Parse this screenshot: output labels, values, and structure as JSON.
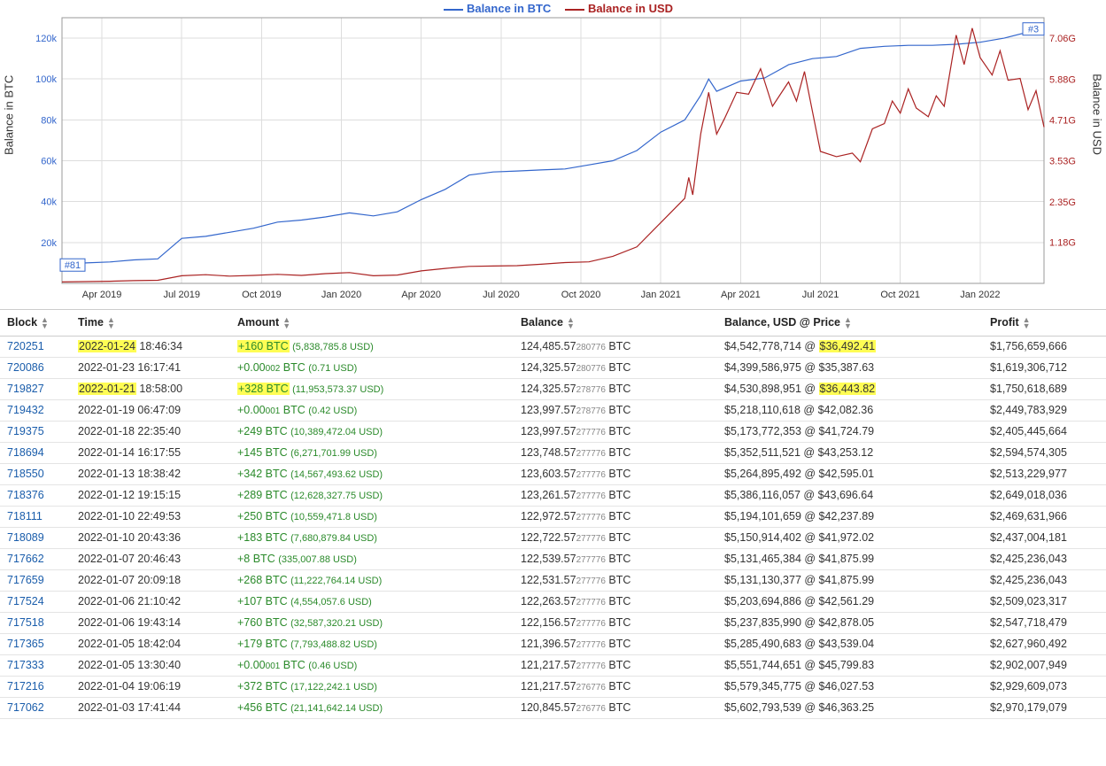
{
  "chart": {
    "type": "line",
    "legend": {
      "btc": "Balance in BTC",
      "usd": "Balance in USD"
    },
    "colors": {
      "btc": "#3366cc",
      "usd": "#aa2222",
      "grid": "#dddddd",
      "axis": "#999999",
      "bg": "#ffffff"
    },
    "y_axis_left": {
      "label": "Balance in BTC",
      "ticks": [
        {
          "v": 20000,
          "label": "20k"
        },
        {
          "v": 40000,
          "label": "40k"
        },
        {
          "v": 60000,
          "label": "60k"
        },
        {
          "v": 80000,
          "label": "80k"
        },
        {
          "v": 100000,
          "label": "100k"
        },
        {
          "v": 120000,
          "label": "120k"
        }
      ],
      "min": 0,
      "max": 130000
    },
    "y_axis_right": {
      "label": "Balance in USD",
      "ticks": [
        {
          "v": 1.18,
          "label": "1.18G"
        },
        {
          "v": 2.35,
          "label": "2.35G"
        },
        {
          "v": 3.53,
          "label": "3.53G"
        },
        {
          "v": 4.71,
          "label": "4.71G"
        },
        {
          "v": 5.88,
          "label": "5.88G"
        },
        {
          "v": 7.06,
          "label": "7.06G"
        }
      ],
      "min": 0,
      "max": 7.65
    },
    "x_axis": {
      "ticks": [
        "Apr 2019",
        "Jul 2019",
        "Oct 2019",
        "Jan 2020",
        "Apr 2020",
        "Jul 2020",
        "Oct 2020",
        "Jan 2021",
        "Apr 2021",
        "Jul 2021",
        "Oct 2021",
        "Jan 2022"
      ],
      "min_t": 0,
      "max_t": 12.3
    },
    "badges": {
      "start": "#81",
      "end": "#3"
    },
    "series_btc": [
      [
        0.0,
        9000
      ],
      [
        0.3,
        10000
      ],
      [
        0.6,
        10500
      ],
      [
        0.9,
        11500
      ],
      [
        1.2,
        12000
      ],
      [
        1.5,
        22000
      ],
      [
        1.8,
        23000
      ],
      [
        2.1,
        25000
      ],
      [
        2.4,
        27000
      ],
      [
        2.7,
        30000
      ],
      [
        3.0,
        31000
      ],
      [
        3.3,
        32500
      ],
      [
        3.6,
        34500
      ],
      [
        3.9,
        33000
      ],
      [
        4.2,
        35000
      ],
      [
        4.5,
        41000
      ],
      [
        4.8,
        46000
      ],
      [
        5.1,
        53000
      ],
      [
        5.4,
        54500
      ],
      [
        5.7,
        55000
      ],
      [
        6.0,
        55500
      ],
      [
        6.3,
        56000
      ],
      [
        6.6,
        58000
      ],
      [
        6.9,
        60000
      ],
      [
        7.2,
        65000
      ],
      [
        7.5,
        74000
      ],
      [
        7.8,
        80000
      ],
      [
        8.0,
        92000
      ],
      [
        8.1,
        100000
      ],
      [
        8.2,
        94000
      ],
      [
        8.5,
        99000
      ],
      [
        8.8,
        100500
      ],
      [
        9.1,
        107000
      ],
      [
        9.4,
        110000
      ],
      [
        9.7,
        111000
      ],
      [
        10.0,
        115000
      ],
      [
        10.3,
        116000
      ],
      [
        10.6,
        116500
      ],
      [
        10.9,
        116500
      ],
      [
        11.2,
        117000
      ],
      [
        11.5,
        118000
      ],
      [
        11.8,
        120000
      ],
      [
        12.1,
        123000
      ],
      [
        12.3,
        124485
      ]
    ],
    "series_usd": [
      [
        0.0,
        0.04
      ],
      [
        0.3,
        0.05
      ],
      [
        0.6,
        0.06
      ],
      [
        0.9,
        0.08
      ],
      [
        1.2,
        0.09
      ],
      [
        1.5,
        0.22
      ],
      [
        1.8,
        0.25
      ],
      [
        2.1,
        0.21
      ],
      [
        2.4,
        0.23
      ],
      [
        2.7,
        0.26
      ],
      [
        3.0,
        0.23
      ],
      [
        3.3,
        0.28
      ],
      [
        3.6,
        0.31
      ],
      [
        3.9,
        0.22
      ],
      [
        4.2,
        0.24
      ],
      [
        4.5,
        0.36
      ],
      [
        4.8,
        0.43
      ],
      [
        5.1,
        0.49
      ],
      [
        5.4,
        0.5
      ],
      [
        5.7,
        0.51
      ],
      [
        6.0,
        0.55
      ],
      [
        6.3,
        0.6
      ],
      [
        6.6,
        0.62
      ],
      [
        6.9,
        0.78
      ],
      [
        7.2,
        1.05
      ],
      [
        7.5,
        1.75
      ],
      [
        7.8,
        2.45
      ],
      [
        7.85,
        3.05
      ],
      [
        7.9,
        2.55
      ],
      [
        8.0,
        4.3
      ],
      [
        8.1,
        5.5
      ],
      [
        8.2,
        4.3
      ],
      [
        8.3,
        4.75
      ],
      [
        8.45,
        5.5
      ],
      [
        8.6,
        5.45
      ],
      [
        8.75,
        6.18
      ],
      [
        8.9,
        5.1
      ],
      [
        9.1,
        5.8
      ],
      [
        9.2,
        5.25
      ],
      [
        9.3,
        6.1
      ],
      [
        9.5,
        3.8
      ],
      [
        9.7,
        3.65
      ],
      [
        9.9,
        3.75
      ],
      [
        10.0,
        3.5
      ],
      [
        10.15,
        4.45
      ],
      [
        10.3,
        4.6
      ],
      [
        10.4,
        5.25
      ],
      [
        10.5,
        4.9
      ],
      [
        10.6,
        5.6
      ],
      [
        10.7,
        5.05
      ],
      [
        10.85,
        4.8
      ],
      [
        10.95,
        5.4
      ],
      [
        11.05,
        5.1
      ],
      [
        11.2,
        7.15
      ],
      [
        11.3,
        6.3
      ],
      [
        11.4,
        7.35
      ],
      [
        11.5,
        6.5
      ],
      [
        11.65,
        6.0
      ],
      [
        11.75,
        6.7
      ],
      [
        11.85,
        5.85
      ],
      [
        12.0,
        5.9
      ],
      [
        12.1,
        5.0
      ],
      [
        12.2,
        5.55
      ],
      [
        12.3,
        4.5
      ]
    ]
  },
  "table": {
    "headers": {
      "block": "Block",
      "time": "Time",
      "amount": "Amount",
      "balance": "Balance",
      "usdprice": "Balance, USD @ Price",
      "profit": "Profit"
    },
    "rows": [
      {
        "block": "720251",
        "time_pre": "2022-01-24",
        "time_post": " 18:46:34",
        "time_hl": true,
        "amt": "+160 BTC",
        "amt_hl": true,
        "amt_usd": "(5,838,785.8 USD)",
        "bal": "124,485.57",
        "bal_sub": "280776",
        "balusd": "$4,542,778,714 @ ",
        "price": "$36,492.41",
        "price_hl": true,
        "profit": "$1,756,659,666"
      },
      {
        "block": "720086",
        "time_pre": "2022-01-23",
        "time_post": " 16:17:41",
        "time_hl": false,
        "amt": "+0.00",
        "amt_sub": "002",
        "amt_tail": " BTC",
        "amt_hl": false,
        "amt_usd": "(0.71 USD)",
        "bal": "124,325.57",
        "bal_sub": "280776",
        "balusd": "$4,399,586,975 @ ",
        "price": "$35,387.63",
        "price_hl": false,
        "profit": "$1,619,306,712"
      },
      {
        "block": "719827",
        "time_pre": "2022-01-21",
        "time_post": " 18:58:00",
        "time_hl": true,
        "amt": "+328 BTC",
        "amt_hl": true,
        "amt_usd": "(11,953,573.37 USD)",
        "bal": "124,325.57",
        "bal_sub": "278776",
        "balusd": "$4,530,898,951 @ ",
        "price": "$36,443.82",
        "price_hl": true,
        "profit": "$1,750,618,689"
      },
      {
        "block": "719432",
        "time_pre": "2022-01-19",
        "time_post": " 06:47:09",
        "time_hl": false,
        "amt": "+0.00",
        "amt_sub": "001",
        "amt_tail": " BTC",
        "amt_hl": false,
        "amt_usd": "(0.42 USD)",
        "bal": "123,997.57",
        "bal_sub": "278776",
        "balusd": "$5,218,110,618 @ ",
        "price": "$42,082.36",
        "price_hl": false,
        "profit": "$2,449,783,929"
      },
      {
        "block": "719375",
        "time_pre": "2022-01-18",
        "time_post": " 22:35:40",
        "time_hl": false,
        "amt": "+249 BTC",
        "amt_hl": false,
        "amt_usd": "(10,389,472.04 USD)",
        "bal": "123,997.57",
        "bal_sub": "277776",
        "balusd": "$5,173,772,353 @ ",
        "price": "$41,724.79",
        "price_hl": false,
        "profit": "$2,405,445,664"
      },
      {
        "block": "718694",
        "time_pre": "2022-01-14",
        "time_post": " 16:17:55",
        "time_hl": false,
        "amt": "+145 BTC",
        "amt_hl": false,
        "amt_usd": "(6,271,701.99 USD)",
        "bal": "123,748.57",
        "bal_sub": "277776",
        "balusd": "$5,352,511,521 @ ",
        "price": "$43,253.12",
        "price_hl": false,
        "profit": "$2,594,574,305"
      },
      {
        "block": "718550",
        "time_pre": "2022-01-13",
        "time_post": " 18:38:42",
        "time_hl": false,
        "amt": "+342 BTC",
        "amt_hl": false,
        "amt_usd": "(14,567,493.62 USD)",
        "bal": "123,603.57",
        "bal_sub": "277776",
        "balusd": "$5,264,895,492 @ ",
        "price": "$42,595.01",
        "price_hl": false,
        "profit": "$2,513,229,977"
      },
      {
        "block": "718376",
        "time_pre": "2022-01-12",
        "time_post": " 19:15:15",
        "time_hl": false,
        "amt": "+289 BTC",
        "amt_hl": false,
        "amt_usd": "(12,628,327.75 USD)",
        "bal": "123,261.57",
        "bal_sub": "277776",
        "balusd": "$5,386,116,057 @ ",
        "price": "$43,696.64",
        "price_hl": false,
        "profit": "$2,649,018,036"
      },
      {
        "block": "718111",
        "time_pre": "2022-01-10",
        "time_post": " 22:49:53",
        "time_hl": false,
        "amt": "+250 BTC",
        "amt_hl": false,
        "amt_usd": "(10,559,471.8 USD)",
        "bal": "122,972.57",
        "bal_sub": "277776",
        "balusd": "$5,194,101,659 @ ",
        "price": "$42,237.89",
        "price_hl": false,
        "profit": "$2,469,631,966"
      },
      {
        "block": "718089",
        "time_pre": "2022-01-10",
        "time_post": " 20:43:36",
        "time_hl": false,
        "amt": "+183 BTC",
        "amt_hl": false,
        "amt_usd": "(7,680,879.84 USD)",
        "bal": "122,722.57",
        "bal_sub": "277776",
        "balusd": "$5,150,914,402 @ ",
        "price": "$41,972.02",
        "price_hl": false,
        "profit": "$2,437,004,181"
      },
      {
        "block": "717662",
        "time_pre": "2022-01-07",
        "time_post": " 20:46:43",
        "time_hl": false,
        "amt": "+8 BTC",
        "amt_hl": false,
        "amt_usd": "(335,007.88 USD)",
        "bal": "122,539.57",
        "bal_sub": "277776",
        "balusd": "$5,131,465,384 @ ",
        "price": "$41,875.99",
        "price_hl": false,
        "profit": "$2,425,236,043"
      },
      {
        "block": "717659",
        "time_pre": "2022-01-07",
        "time_post": " 20:09:18",
        "time_hl": false,
        "amt": "+268 BTC",
        "amt_hl": false,
        "amt_usd": "(11,222,764.14 USD)",
        "bal": "122,531.57",
        "bal_sub": "277776",
        "balusd": "$5,131,130,377 @ ",
        "price": "$41,875.99",
        "price_hl": false,
        "profit": "$2,425,236,043"
      },
      {
        "block": "717524",
        "time_pre": "2022-01-06",
        "time_post": " 21:10:42",
        "time_hl": false,
        "amt": "+107 BTC",
        "amt_hl": false,
        "amt_usd": "(4,554,057.6 USD)",
        "bal": "122,263.57",
        "bal_sub": "277776",
        "balusd": "$5,203,694,886 @ ",
        "price": "$42,561.29",
        "price_hl": false,
        "profit": "$2,509,023,317"
      },
      {
        "block": "717518",
        "time_pre": "2022-01-06",
        "time_post": " 19:43:14",
        "time_hl": false,
        "amt": "+760 BTC",
        "amt_hl": false,
        "amt_usd": "(32,587,320.21 USD)",
        "bal": "122,156.57",
        "bal_sub": "277776",
        "balusd": "$5,237,835,990 @ ",
        "price": "$42,878.05",
        "price_hl": false,
        "profit": "$2,547,718,479"
      },
      {
        "block": "717365",
        "time_pre": "2022-01-05",
        "time_post": " 18:42:04",
        "time_hl": false,
        "amt": "+179 BTC",
        "amt_hl": false,
        "amt_usd": "(7,793,488.82 USD)",
        "bal": "121,396.57",
        "bal_sub": "277776",
        "balusd": "$5,285,490,683 @ ",
        "price": "$43,539.04",
        "price_hl": false,
        "profit": "$2,627,960,492"
      },
      {
        "block": "717333",
        "time_pre": "2022-01-05",
        "time_post": " 13:30:40",
        "time_hl": false,
        "amt": "+0.00",
        "amt_sub": "001",
        "amt_tail": " BTC",
        "amt_hl": false,
        "amt_usd": "(0.46 USD)",
        "bal": "121,217.57",
        "bal_sub": "277776",
        "balusd": "$5,551,744,651 @ ",
        "price": "$45,799.83",
        "price_hl": false,
        "profit": "$2,902,007,949"
      },
      {
        "block": "717216",
        "time_pre": "2022-01-04",
        "time_post": " 19:06:19",
        "time_hl": false,
        "amt": "+372 BTC",
        "amt_hl": false,
        "amt_usd": "(17,122,242.1 USD)",
        "bal": "121,217.57",
        "bal_sub": "276776",
        "balusd": "$5,579,345,775 @ ",
        "price": "$46,027.53",
        "price_hl": false,
        "profit": "$2,929,609,073"
      },
      {
        "block": "717062",
        "time_pre": "2022-01-03",
        "time_post": " 17:41:44",
        "time_hl": false,
        "amt": "+456 BTC",
        "amt_hl": false,
        "amt_usd": "(21,141,642.14 USD)",
        "bal": "120,845.57",
        "bal_sub": "276776",
        "balusd": "$5,602,793,539 @ ",
        "price": "$46,363.25",
        "price_hl": false,
        "profit": "$2,970,179,079"
      }
    ]
  }
}
